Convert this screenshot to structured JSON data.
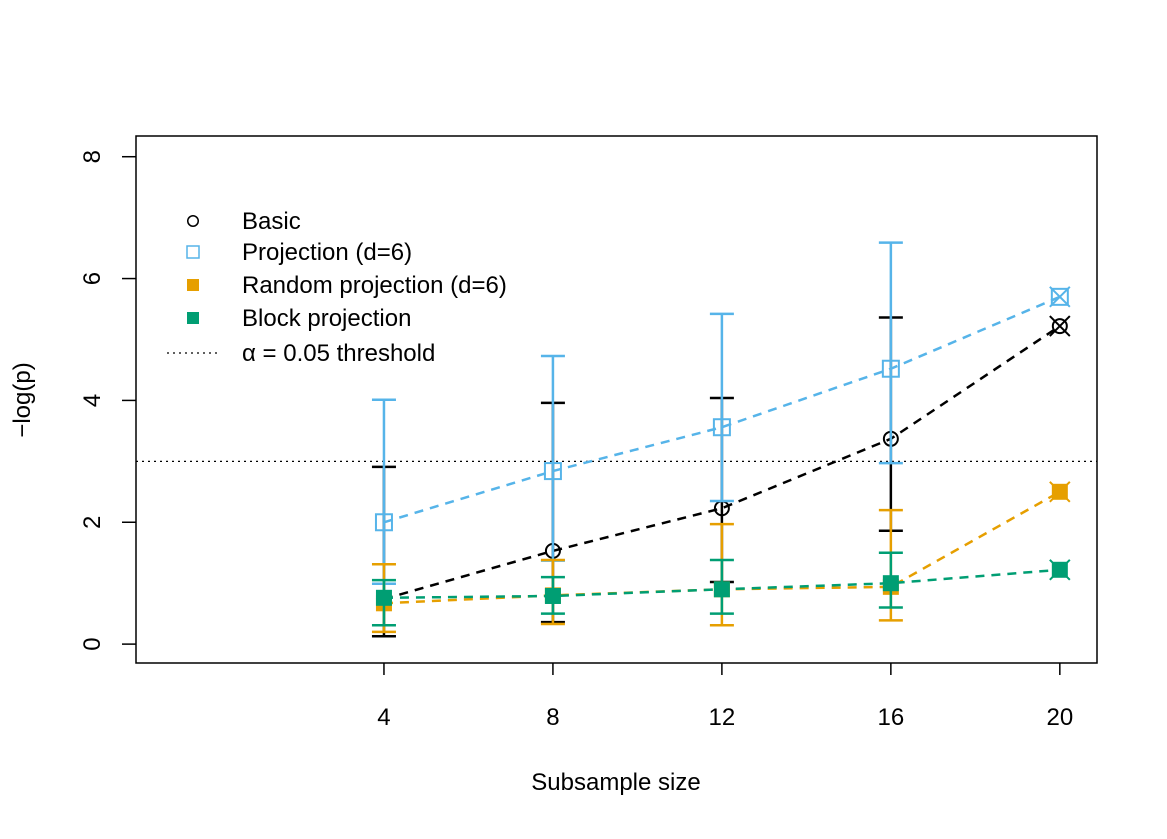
{
  "chart_data": {
    "type": "line",
    "x_label": "Subsample size",
    "y_label": "−log(p)",
    "x": [
      4,
      8,
      12,
      16,
      20
    ],
    "xlim": [
      -1.87,
      20.88
    ],
    "xticks": [
      4,
      8,
      12,
      16,
      20
    ],
    "ylim": [
      -0.31,
      8.34
    ],
    "yticks": [
      0,
      2,
      4,
      6,
      8
    ],
    "threshold": 3,
    "threshold_label": "α = 0.05 threshold",
    "legend": "top-left",
    "series": [
      {
        "name": "Basic",
        "color": "#000000",
        "marker": "open-circle",
        "values": [
          0.74,
          1.53,
          2.23,
          3.37,
          5.22
        ],
        "lower": [
          0.13,
          0.36,
          1.02,
          1.86,
          5.22
        ],
        "upper": [
          2.91,
          3.96,
          4.04,
          5.36,
          5.22
        ]
      },
      {
        "name": "Projection (d=6)",
        "color": "#56B4E9",
        "marker": "open-square",
        "values": [
          2.0,
          2.84,
          3.56,
          4.52,
          5.7
        ],
        "lower": [
          0.99,
          1.37,
          2.35,
          2.97,
          5.7
        ],
        "upper": [
          4.01,
          4.73,
          5.42,
          6.59,
          5.7
        ]
      },
      {
        "name": "Random projection (d=6)",
        "color": "#E69F00",
        "marker": "filled-square",
        "values": [
          0.67,
          0.8,
          0.9,
          0.94,
          2.5
        ],
        "lower": [
          0.2,
          0.33,
          0.31,
          0.39,
          2.5
        ],
        "upper": [
          1.31,
          1.38,
          1.97,
          2.2,
          2.5
        ]
      },
      {
        "name": "Block projection",
        "color": "#009E73",
        "marker": "filled-square",
        "values": [
          0.76,
          0.79,
          0.9,
          1.0,
          1.22
        ],
        "lower": [
          0.31,
          0.5,
          0.5,
          0.6,
          1.22
        ],
        "upper": [
          1.05,
          1.1,
          1.38,
          1.5,
          1.22
        ]
      }
    ]
  }
}
